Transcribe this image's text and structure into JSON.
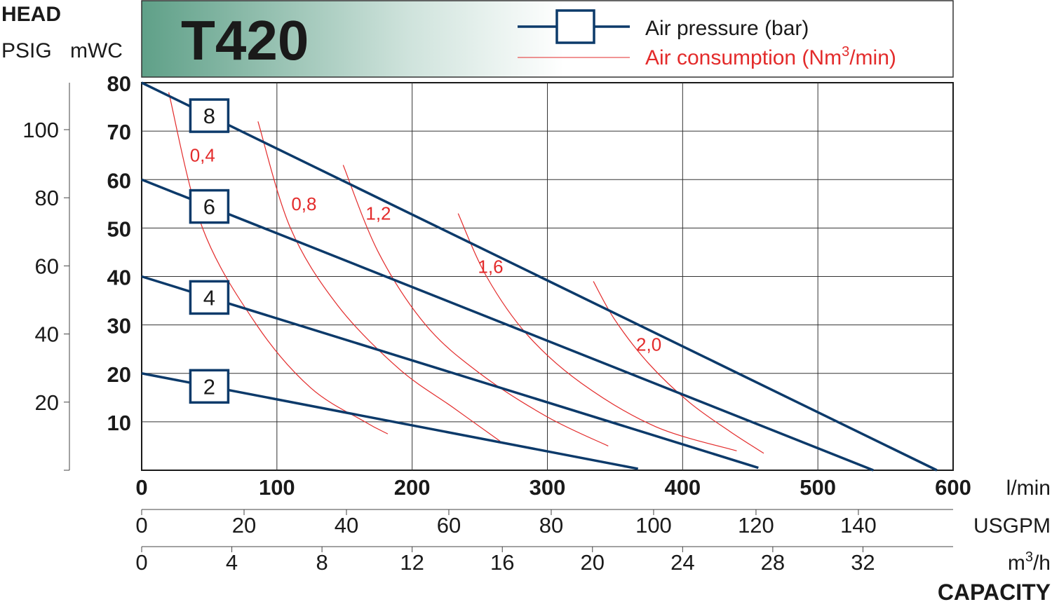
{
  "chart_data": {
    "type": "line",
    "title": "T420",
    "head_label": "HEAD",
    "psig_unit": "PSIG",
    "mwc_unit": "mWC",
    "capacity_label": "CAPACITY",
    "legend": {
      "placement": "top-right",
      "pressure_label": "Air pressure (bar)",
      "consumption_label_prefix": "Air consumption (Nm",
      "consumption_label_sup": "3",
      "consumption_label_suffix": "/min)"
    },
    "x_axes": [
      {
        "unit": "l/min",
        "range": [
          0,
          600
        ],
        "ticks": [
          0,
          100,
          200,
          300,
          400,
          500,
          600
        ]
      },
      {
        "unit": "USGPM",
        "ticks": [
          0,
          20,
          40,
          60,
          80,
          100,
          120,
          140
        ]
      },
      {
        "unit_prefix": "m",
        "unit_sup": "3",
        "unit_suffix": "/h",
        "ticks": [
          0,
          4,
          8,
          12,
          16,
          20,
          24,
          28,
          32
        ]
      }
    ],
    "y_axes": {
      "mwc": {
        "range": [
          0,
          80
        ],
        "ticks": [
          10,
          20,
          30,
          40,
          50,
          60,
          70,
          80
        ]
      },
      "psig": {
        "ticks": [
          20,
          40,
          60,
          80,
          100
        ]
      }
    },
    "grid": true,
    "series": [
      {
        "name": "8",
        "kind": "air_pressure_bar",
        "x": [
          0,
          588
        ],
        "y": [
          80,
          0
        ]
      },
      {
        "name": "6",
        "kind": "air_pressure_bar",
        "x": [
          0,
          541
        ],
        "y": [
          60,
          0
        ]
      },
      {
        "name": "4",
        "kind": "air_pressure_bar",
        "x": [
          0,
          456
        ],
        "y": [
          40,
          0.5
        ]
      },
      {
        "name": "2",
        "kind": "air_pressure_bar",
        "x": [
          0,
          367
        ],
        "y": [
          20,
          0.3
        ]
      },
      {
        "name": "0,4",
        "kind": "air_consumption_nm3_min",
        "x": [
          20,
          45,
          85,
          125,
          165,
          182
        ],
        "y": [
          78,
          50,
          30,
          17,
          10,
          7.5
        ]
      },
      {
        "name": "0,8",
        "kind": "air_consumption_nm3_min",
        "x": [
          86,
          110,
          145,
          190,
          230,
          265
        ],
        "y": [
          72,
          50,
          34,
          21,
          13,
          6
        ]
      },
      {
        "name": "1,2",
        "kind": "air_consumption_nm3_min",
        "x": [
          149,
          175,
          210,
          250,
          300,
          345
        ],
        "y": [
          63,
          45,
          30,
          20,
          11,
          5
        ]
      },
      {
        "name": "1,6",
        "kind": "air_consumption_nm3_min",
        "x": [
          234,
          255,
          285,
          325,
          380,
          440
        ],
        "y": [
          53,
          40,
          28,
          18,
          9,
          4
        ]
      },
      {
        "name": "2,0",
        "kind": "air_consumption_nm3_min",
        "x": [
          334,
          350,
          375,
          405,
          435,
          460
        ],
        "y": [
          39,
          31,
          22,
          14,
          8,
          3.5
        ]
      }
    ]
  },
  "colors": {
    "pressure": "#0c3a6a",
    "consumption": "#e32b2b",
    "grid": "#333333",
    "header_green": "#5fa088"
  }
}
